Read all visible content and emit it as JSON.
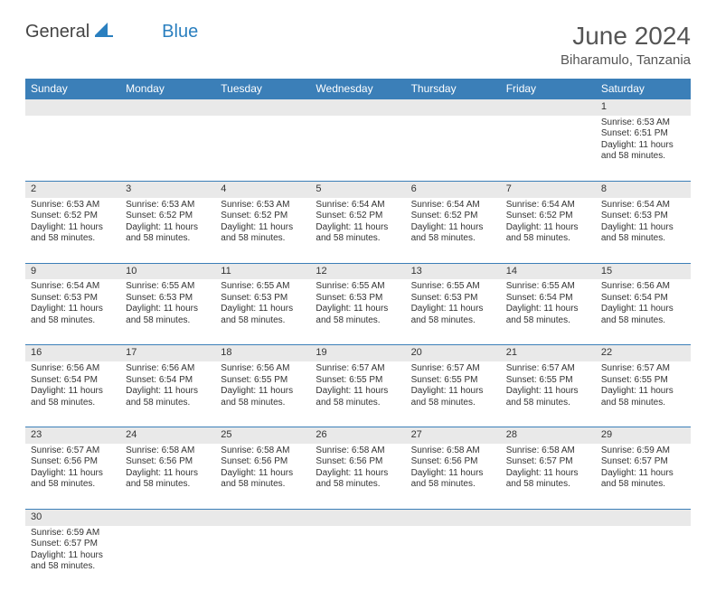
{
  "brand": {
    "part1": "General",
    "part2": "Blue"
  },
  "title": "June 2024",
  "location": "Biharamulo, Tanzania",
  "colors": {
    "header_bg": "#3b7fb8",
    "header_text": "#ffffff",
    "daynum_bg": "#e9e9e9",
    "border": "#3b7fb8",
    "logo_blue": "#2a7fbf",
    "text": "#333333"
  },
  "day_headers": [
    "Sunday",
    "Monday",
    "Tuesday",
    "Wednesday",
    "Thursday",
    "Friday",
    "Saturday"
  ],
  "first_weekday": 6,
  "days_in_month": 30,
  "days": {
    "1": {
      "sunrise": "6:53 AM",
      "sunset": "6:51 PM",
      "daylight": "11 hours and 58 minutes."
    },
    "2": {
      "sunrise": "6:53 AM",
      "sunset": "6:52 PM",
      "daylight": "11 hours and 58 minutes."
    },
    "3": {
      "sunrise": "6:53 AM",
      "sunset": "6:52 PM",
      "daylight": "11 hours and 58 minutes."
    },
    "4": {
      "sunrise": "6:53 AM",
      "sunset": "6:52 PM",
      "daylight": "11 hours and 58 minutes."
    },
    "5": {
      "sunrise": "6:54 AM",
      "sunset": "6:52 PM",
      "daylight": "11 hours and 58 minutes."
    },
    "6": {
      "sunrise": "6:54 AM",
      "sunset": "6:52 PM",
      "daylight": "11 hours and 58 minutes."
    },
    "7": {
      "sunrise": "6:54 AM",
      "sunset": "6:52 PM",
      "daylight": "11 hours and 58 minutes."
    },
    "8": {
      "sunrise": "6:54 AM",
      "sunset": "6:53 PM",
      "daylight": "11 hours and 58 minutes."
    },
    "9": {
      "sunrise": "6:54 AM",
      "sunset": "6:53 PM",
      "daylight": "11 hours and 58 minutes."
    },
    "10": {
      "sunrise": "6:55 AM",
      "sunset": "6:53 PM",
      "daylight": "11 hours and 58 minutes."
    },
    "11": {
      "sunrise": "6:55 AM",
      "sunset": "6:53 PM",
      "daylight": "11 hours and 58 minutes."
    },
    "12": {
      "sunrise": "6:55 AM",
      "sunset": "6:53 PM",
      "daylight": "11 hours and 58 minutes."
    },
    "13": {
      "sunrise": "6:55 AM",
      "sunset": "6:53 PM",
      "daylight": "11 hours and 58 minutes."
    },
    "14": {
      "sunrise": "6:55 AM",
      "sunset": "6:54 PM",
      "daylight": "11 hours and 58 minutes."
    },
    "15": {
      "sunrise": "6:56 AM",
      "sunset": "6:54 PM",
      "daylight": "11 hours and 58 minutes."
    },
    "16": {
      "sunrise": "6:56 AM",
      "sunset": "6:54 PM",
      "daylight": "11 hours and 58 minutes."
    },
    "17": {
      "sunrise": "6:56 AM",
      "sunset": "6:54 PM",
      "daylight": "11 hours and 58 minutes."
    },
    "18": {
      "sunrise": "6:56 AM",
      "sunset": "6:55 PM",
      "daylight": "11 hours and 58 minutes."
    },
    "19": {
      "sunrise": "6:57 AM",
      "sunset": "6:55 PM",
      "daylight": "11 hours and 58 minutes."
    },
    "20": {
      "sunrise": "6:57 AM",
      "sunset": "6:55 PM",
      "daylight": "11 hours and 58 minutes."
    },
    "21": {
      "sunrise": "6:57 AM",
      "sunset": "6:55 PM",
      "daylight": "11 hours and 58 minutes."
    },
    "22": {
      "sunrise": "6:57 AM",
      "sunset": "6:55 PM",
      "daylight": "11 hours and 58 minutes."
    },
    "23": {
      "sunrise": "6:57 AM",
      "sunset": "6:56 PM",
      "daylight": "11 hours and 58 minutes."
    },
    "24": {
      "sunrise": "6:58 AM",
      "sunset": "6:56 PM",
      "daylight": "11 hours and 58 minutes."
    },
    "25": {
      "sunrise": "6:58 AM",
      "sunset": "6:56 PM",
      "daylight": "11 hours and 58 minutes."
    },
    "26": {
      "sunrise": "6:58 AM",
      "sunset": "6:56 PM",
      "daylight": "11 hours and 58 minutes."
    },
    "27": {
      "sunrise": "6:58 AM",
      "sunset": "6:56 PM",
      "daylight": "11 hours and 58 minutes."
    },
    "28": {
      "sunrise": "6:58 AM",
      "sunset": "6:57 PM",
      "daylight": "11 hours and 58 minutes."
    },
    "29": {
      "sunrise": "6:59 AM",
      "sunset": "6:57 PM",
      "daylight": "11 hours and 58 minutes."
    },
    "30": {
      "sunrise": "6:59 AM",
      "sunset": "6:57 PM",
      "daylight": "11 hours and 58 minutes."
    }
  },
  "labels": {
    "sunrise": "Sunrise:",
    "sunset": "Sunset:",
    "daylight": "Daylight:"
  }
}
